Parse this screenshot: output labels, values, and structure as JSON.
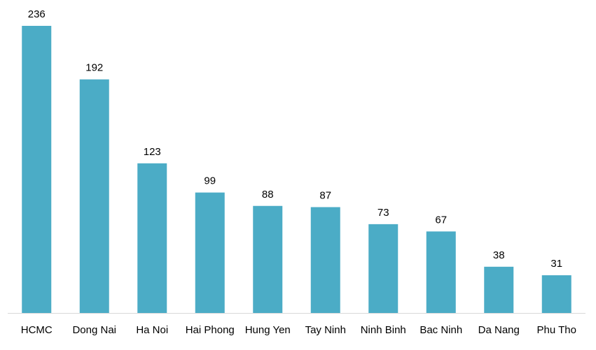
{
  "chart_data": {
    "type": "bar",
    "categories": [
      "HCMC",
      "Dong Nai",
      "Ha Noi",
      "Hai Phong",
      "Hung Yen",
      "Tay Ninh",
      "Ninh Binh",
      "Bac Ninh",
      "Da Nang",
      "Phu Tho"
    ],
    "values": [
      236,
      192,
      123,
      99,
      88,
      87,
      73,
      67,
      38,
      31
    ],
    "data_labels": [
      "236",
      "192",
      "123",
      "99",
      "88",
      "87",
      "73",
      "67",
      "38",
      "31"
    ],
    "title": "",
    "xlabel": "",
    "ylabel": "",
    "ylim": [
      0,
      236
    ],
    "grid": false,
    "legend": "none",
    "colors": {
      "bar": "#4BACC6",
      "axis": "#D9D9D9",
      "text": "#000000"
    }
  }
}
